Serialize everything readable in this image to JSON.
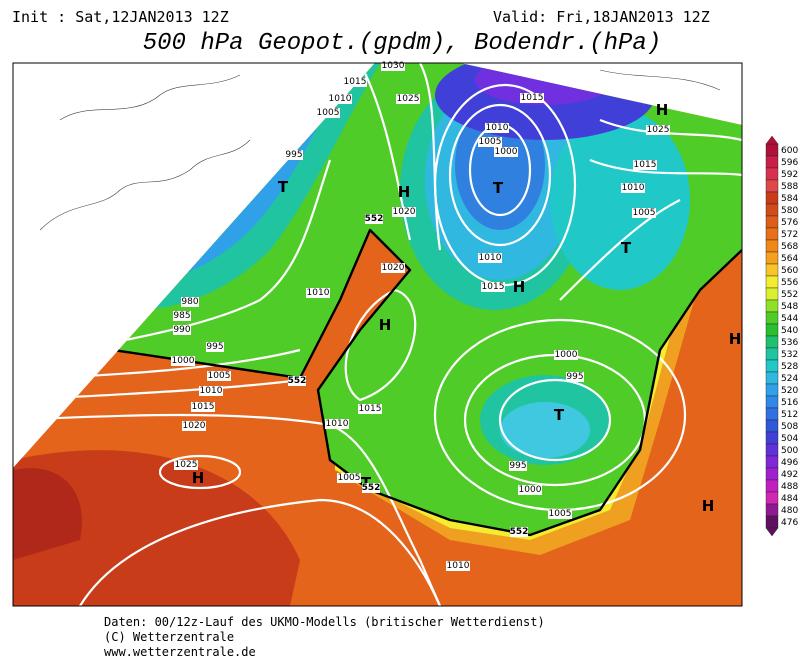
{
  "header": {
    "init": "Init : Sat,12JAN2013 12Z",
    "valid": "Valid: Fri,18JAN2013 12Z",
    "title": "500 hPa Geopot.(gpdm), Bodendr.(hPa)"
  },
  "map_labels": [
    "1030",
    "1015",
    "1010",
    "1005",
    "1025",
    "995",
    "T",
    "H",
    "1020",
    "552",
    "1015",
    "1010",
    "1005",
    "1000",
    "T",
    "H",
    "1025",
    "1015",
    "1010",
    "1005",
    "T",
    "1020",
    "1010",
    "1015",
    "H",
    "1010",
    "980",
    "985",
    "990",
    "995",
    "1000",
    "1005",
    "1010",
    "1015",
    "1020",
    "552",
    "H",
    "1015",
    "1010",
    "1000",
    "995",
    "T",
    "H",
    "995",
    "1025",
    "H",
    "1005",
    "T",
    "552",
    "1000",
    "1005",
    "552",
    "H",
    "1010"
  ],
  "colorbar": {
    "values": [
      600,
      596,
      592,
      588,
      584,
      580,
      576,
      572,
      568,
      564,
      560,
      556,
      552,
      548,
      544,
      540,
      536,
      532,
      528,
      524,
      520,
      516,
      512,
      508,
      504,
      500,
      496,
      492,
      488,
      484,
      480,
      476
    ],
    "colors": [
      "#b0103a",
      "#c81e48",
      "#d83250",
      "#e04848",
      "#c83c1a",
      "#d04c1a",
      "#dc5e18",
      "#e87018",
      "#f08818",
      "#f4a020",
      "#f8c428",
      "#f4ec30",
      "#d8f030",
      "#90e028",
      "#50cc28",
      "#28c030",
      "#20c070",
      "#20c4a0",
      "#20c8c8",
      "#30b8e0",
      "#30a0e8",
      "#3088e8",
      "#3070e0",
      "#3058d8",
      "#4040d8",
      "#6030d8",
      "#8028d8",
      "#a020d0",
      "#c020c0",
      "#d028b0",
      "#901890",
      "#601060"
    ]
  },
  "footer": {
    "line1": "Daten: 00/12z-Lauf des UKMO-Modells (britischer Wetterdienst)",
    "line2": "(C) Wetterzentrale",
    "line3": "www.wetterzentrale.de"
  }
}
